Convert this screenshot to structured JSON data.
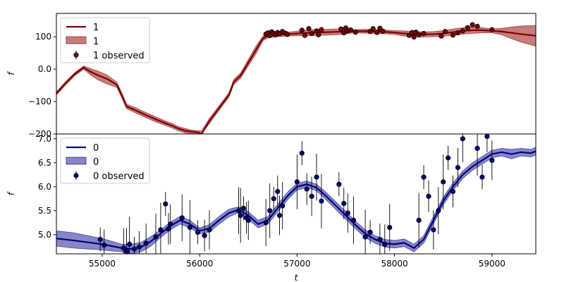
{
  "figure": {
    "xlabel": "t"
  },
  "chart_data": [
    {
      "type": "line",
      "ylabel": "f",
      "xlim": [
        54530,
        59450
      ],
      "ylim": [
        -200,
        172
      ],
      "yticks": [
        -200,
        -100,
        0,
        100
      ],
      "grid": false,
      "legend_position": "top-left",
      "legend": [
        "1",
        "1",
        "1 observed"
      ],
      "colors": {
        "line": "#7b0000",
        "band": "#a52a2a",
        "points": "#7b0000"
      },
      "series": [
        {
          "name": "1",
          "x": [
            54530,
            54620,
            54720,
            54810,
            54880,
            54950,
            55050,
            55150,
            55200,
            55250,
            55350,
            55450,
            55550,
            55650,
            55720,
            55780,
            55850,
            55920,
            55980,
            56020,
            56100,
            56200,
            56300,
            56350,
            56420,
            56500,
            56580,
            56650,
            56700,
            56800,
            56900,
            57000,
            57100,
            57200,
            57300,
            57400,
            57500,
            57600,
            57700,
            57800,
            57900,
            58000,
            58100,
            58200,
            58300,
            58400,
            58500,
            58600,
            58700,
            58800,
            58900,
            59000,
            59100,
            59200,
            59300,
            59450
          ],
          "y": [
            -75,
            -45,
            -15,
            5,
            -8,
            -18,
            -30,
            -48,
            -80,
            -115,
            -128,
            -142,
            -155,
            -167,
            -175,
            -183,
            -190,
            -193,
            -195,
            -200,
            -160,
            -120,
            -80,
            -40,
            -20,
            20,
            60,
            95,
            102,
            106,
            108,
            110,
            112,
            113,
            114,
            115,
            116,
            117,
            117,
            116,
            115,
            113,
            110,
            108,
            107,
            108,
            110,
            114,
            118,
            120,
            120,
            118,
            116,
            112,
            108,
            103
          ],
          "upper": [
            -70,
            -40,
            -10,
            10,
            2,
            -5,
            -18,
            -40,
            -72,
            -108,
            -120,
            -134,
            -147,
            -160,
            -168,
            -177,
            -183,
            -188,
            -190,
            -190,
            -152,
            -113,
            -73,
            -32,
            -12,
            30,
            72,
            102,
            108,
            112,
            114,
            117,
            121,
            122,
            123,
            124,
            123,
            122,
            123,
            122,
            121,
            119,
            118,
            116,
            115,
            116,
            119,
            124,
            128,
            130,
            128,
            124,
            126,
            130,
            133,
            135
          ],
          "lower": [
            -80,
            -50,
            -20,
            0,
            -18,
            -32,
            -46,
            -56,
            -88,
            -122,
            -136,
            -150,
            -163,
            -174,
            -182,
            -190,
            -197,
            -199,
            -200,
            -200,
            -168,
            -127,
            -87,
            -48,
            -28,
            10,
            48,
            88,
            96,
            100,
            102,
            103,
            103,
            104,
            105,
            106,
            109,
            112,
            111,
            110,
            109,
            107,
            102,
            100,
            99,
            100,
            101,
            104,
            108,
            110,
            112,
            112,
            106,
            94,
            83,
            71
          ]
        }
      ],
      "observations": {
        "name": "1 observed",
        "x": [
          56680,
          56700,
          56720,
          56740,
          56760,
          56780,
          56800,
          56820,
          56850,
          56880,
          56900,
          57050,
          57080,
          57120,
          57150,
          57200,
          57220,
          57250,
          57450,
          57480,
          57500,
          57520,
          57550,
          57600,
          57750,
          57780,
          57820,
          57850,
          57880,
          58150,
          58180,
          58200,
          58220,
          58250,
          58300,
          58480,
          58520,
          58600,
          58650,
          58700,
          58750,
          58800,
          58850,
          59000
        ],
        "y": [
          108,
          112,
          104,
          115,
          110,
          106,
          113,
          109,
          116,
          111,
          107,
          120,
          104,
          125,
          110,
          118,
          106,
          122,
          124,
          112,
          127,
          118,
          121,
          114,
          116,
          125,
          113,
          126,
          117,
          104,
          113,
          99,
          114,
          106,
          110,
          102,
          116,
          105,
          112,
          118,
          128,
          137,
          132,
          122
        ]
      }
    },
    {
      "type": "line",
      "ylabel": "f",
      "xlim": [
        54530,
        59450
      ],
      "ylim": [
        4.6,
        7.1
      ],
      "yticks": [
        5.0,
        5.5,
        6.0,
        6.5,
        7.0
      ],
      "xticks": [
        55000,
        56000,
        57000,
        58000,
        59000
      ],
      "grid": false,
      "legend_position": "top-left",
      "legend": [
        "0",
        "0",
        "0 observed"
      ],
      "colors": {
        "line": "#00007b",
        "band": "#3b3ba8",
        "points": "#00007b"
      },
      "series": [
        {
          "name": "0",
          "x": [
            54530,
            54700,
            54850,
            55000,
            55100,
            55200,
            55300,
            55400,
            55500,
            55600,
            55700,
            55800,
            55900,
            56000,
            56100,
            56200,
            56300,
            56400,
            56500,
            56600,
            56700,
            56800,
            56900,
            57000,
            57100,
            57200,
            57300,
            57400,
            57500,
            57600,
            57700,
            57800,
            57900,
            58000,
            58100,
            58200,
            58300,
            58400,
            58500,
            58600,
            58700,
            58800,
            58900,
            59000,
            59100,
            59200,
            59300,
            59400,
            59450
          ],
          "y": [
            4.92,
            4.88,
            4.84,
            4.8,
            4.76,
            4.72,
            4.7,
            4.74,
            4.86,
            5.02,
            5.18,
            5.3,
            5.22,
            5.08,
            5.13,
            5.3,
            5.45,
            5.52,
            5.4,
            5.22,
            5.3,
            5.55,
            5.8,
            6.0,
            6.05,
            5.98,
            5.8,
            5.6,
            5.4,
            5.2,
            5.02,
            4.9,
            4.82,
            4.8,
            4.83,
            4.72,
            4.9,
            5.3,
            5.7,
            6.0,
            6.25,
            6.42,
            6.55,
            6.68,
            6.72,
            6.68,
            6.72,
            6.7,
            6.74
          ]
        }
      ],
      "band": {
        "upper": [
          5.08,
          5.04,
          4.98,
          4.92,
          4.86,
          4.8,
          4.8,
          4.84,
          4.96,
          5.1,
          5.26,
          5.38,
          5.3,
          5.14,
          5.21,
          5.38,
          5.53,
          5.58,
          5.48,
          5.3,
          5.38,
          5.63,
          5.88,
          6.07,
          6.12,
          6.05,
          5.88,
          5.68,
          5.48,
          5.28,
          5.1,
          4.98,
          4.9,
          4.88,
          4.91,
          4.8,
          4.98,
          5.38,
          5.78,
          6.08,
          6.33,
          6.5,
          6.63,
          6.76,
          6.8,
          6.78,
          6.8,
          6.78,
          6.82
        ],
        "lower": [
          4.76,
          4.72,
          4.7,
          4.68,
          4.66,
          4.64,
          4.6,
          4.64,
          4.76,
          4.94,
          5.1,
          5.22,
          5.14,
          5.02,
          5.05,
          5.22,
          5.37,
          5.46,
          5.32,
          5.14,
          5.22,
          5.47,
          5.72,
          5.93,
          5.98,
          5.91,
          5.72,
          5.52,
          5.32,
          5.12,
          4.94,
          4.82,
          4.74,
          4.72,
          4.75,
          4.64,
          4.82,
          5.22,
          5.62,
          5.92,
          6.17,
          6.34,
          6.47,
          6.6,
          6.64,
          6.58,
          6.64,
          6.62,
          6.66
        ]
      },
      "observations": {
        "name": "0 observed",
        "x": [
          54980,
          55020,
          55220,
          55250,
          55280,
          55330,
          55380,
          55450,
          55550,
          55600,
          55650,
          55680,
          55700,
          55820,
          55900,
          55980,
          56050,
          56100,
          56400,
          56420,
          56450,
          56480,
          56500,
          56680,
          56720,
          56760,
          56800,
          56820,
          56850,
          57000,
          57050,
          57100,
          57150,
          57200,
          57250,
          57430,
          57480,
          57520,
          57580,
          57700,
          57750,
          57850,
          57900,
          57950,
          58250,
          58300,
          58350,
          58400,
          58450,
          58500,
          58550,
          58600,
          58650,
          58700,
          58850,
          58900,
          58950,
          59000
        ],
        "y": [
          4.9,
          4.78,
          4.72,
          4.65,
          4.8,
          4.7,
          4.74,
          4.82,
          4.95,
          5.1,
          5.64,
          5.12,
          5.22,
          5.35,
          5.15,
          5.05,
          4.98,
          5.1,
          5.5,
          5.4,
          5.55,
          5.35,
          5.3,
          5.25,
          5.5,
          5.75,
          5.9,
          5.4,
          5.6,
          6.1,
          6.7,
          5.95,
          5.8,
          6.2,
          5.7,
          6.05,
          5.65,
          5.45,
          5.3,
          4.95,
          5.05,
          4.9,
          4.8,
          5.15,
          5.3,
          6.2,
          5.8,
          5.1,
          5.5,
          6.1,
          6.6,
          5.9,
          6.4,
          7.0,
          6.8,
          6.2,
          7.05,
          6.55
        ]
      }
    }
  ]
}
